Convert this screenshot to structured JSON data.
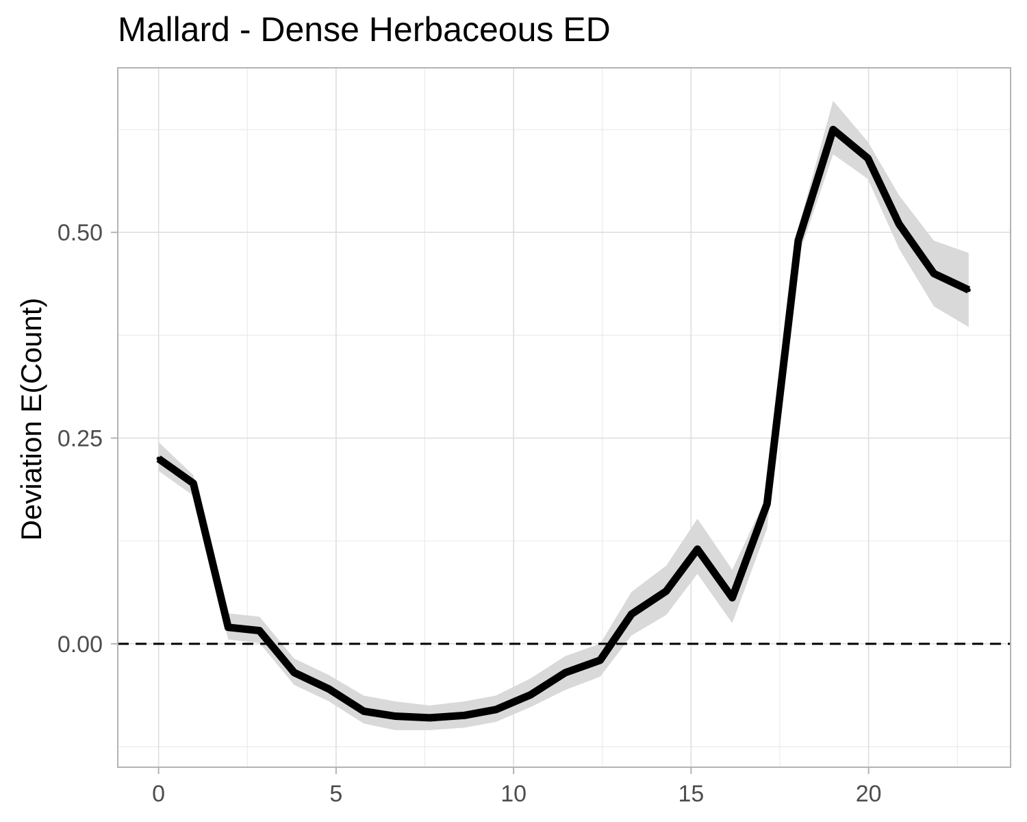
{
  "chart_data": {
    "type": "line",
    "title": "Mallard - Dense Herbaceous ED",
    "xlabel": "",
    "ylabel": "Deviation E(Count)",
    "xlim": [
      -1.15,
      24
    ],
    "ylim": [
      -0.15,
      0.7
    ],
    "x_ticks": [
      0,
      5,
      10,
      15,
      20
    ],
    "x_tick_labels": [
      "0",
      "5",
      "10",
      "15",
      "20"
    ],
    "y_ticks": [
      0.0,
      0.25,
      0.5
    ],
    "y_tick_labels": [
      "0.00",
      "0.25",
      "0.50"
    ],
    "grid": true,
    "reference_line": {
      "y": 0,
      "style": "dashed"
    },
    "series": [
      {
        "x": [
          0,
          0.98,
          1.96,
          2.84,
          3.82,
          4.8,
          5.78,
          6.66,
          7.64,
          8.62,
          9.5,
          10.48,
          11.46,
          12.44,
          13.32,
          14.3,
          15.18,
          16.16,
          17.14,
          18.02,
          19.0,
          19.98,
          20.86,
          21.84,
          22.82
        ],
        "values": [
          0.225,
          0.195,
          0.02,
          0.016,
          -0.035,
          -0.055,
          -0.082,
          -0.088,
          -0.09,
          -0.087,
          -0.08,
          -0.062,
          -0.035,
          -0.02,
          0.036,
          0.064,
          0.115,
          0.056,
          0.17,
          0.49,
          0.625,
          0.59,
          0.51,
          0.45,
          0.43
        ],
        "lower": [
          0.21,
          0.18,
          0.005,
          0.001,
          -0.05,
          -0.07,
          -0.097,
          -0.105,
          -0.105,
          -0.102,
          -0.095,
          -0.077,
          -0.056,
          -0.04,
          0.01,
          0.035,
          0.085,
          0.025,
          0.14,
          0.47,
          0.595,
          0.565,
          0.48,
          0.41,
          0.385
        ],
        "upper": [
          0.245,
          0.205,
          0.037,
          0.033,
          -0.018,
          -0.038,
          -0.063,
          -0.07,
          -0.075,
          -0.07,
          -0.063,
          -0.042,
          -0.015,
          0.0,
          0.063,
          0.095,
          0.152,
          0.09,
          0.18,
          0.505,
          0.66,
          0.61,
          0.545,
          0.49,
          0.475
        ]
      }
    ],
    "colors": {
      "line": "#000000",
      "ribbon": "#d9d9d9",
      "grid": "#dedede",
      "border": "#b3b3b3",
      "tick_text": "#4d4d4d"
    }
  }
}
